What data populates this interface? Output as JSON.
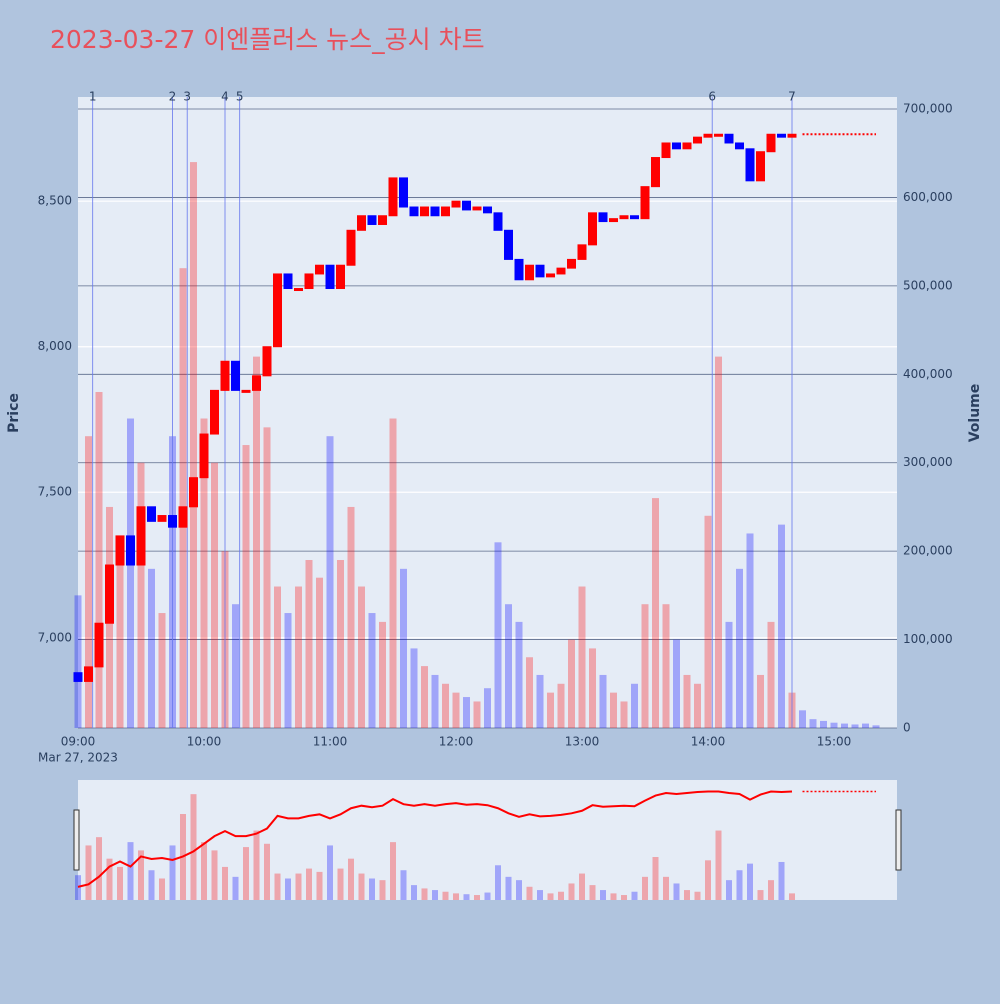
{
  "chart_data": {
    "type": "candlestick",
    "title": "2023-03-27 이엔플러스 뉴스_공시 차트",
    "y_label": "Price",
    "y2_label": "Volume",
    "x_date_label": "Mar 27, 2023",
    "up_color": "#ff0000",
    "down_color": "#0000ff",
    "xlim": [
      "09:00",
      "15:30"
    ],
    "xticks": [
      "09:00",
      "10:00",
      "11:00",
      "12:00",
      "13:00",
      "14:00",
      "15:00"
    ],
    "ylim": [
      6690,
      8858
    ],
    "yticks": [
      {
        "value": 7000,
        "label": "7,000"
      },
      {
        "value": 7500,
        "label": "7,500"
      },
      {
        "value": 8000,
        "label": "8,000"
      },
      {
        "value": 8500,
        "label": "8,500"
      }
    ],
    "y2lim": [
      0,
      713600
    ],
    "y2ticks": [
      0,
      {
        "value": 100000,
        "label": "100,000"
      },
      {
        "value": 200000,
        "label": "200,000"
      },
      {
        "value": 300000,
        "label": "300,000"
      },
      {
        "value": 400000,
        "label": "400,000"
      },
      {
        "value": 500000,
        "label": "500,000"
      },
      {
        "value": 600000,
        "label": "600,000"
      },
      {
        "value": 700000,
        "label": "700,000"
      }
    ],
    "x": [
      "09:00",
      "09:05",
      "09:10",
      "09:15",
      "09:20",
      "09:25",
      "09:30",
      "09:35",
      "09:40",
      "09:45",
      "09:50",
      "09:55",
      "10:00",
      "10:05",
      "10:10",
      "10:15",
      "10:20",
      "10:25",
      "10:30",
      "10:35",
      "10:40",
      "10:45",
      "10:50",
      "10:55",
      "11:00",
      "11:05",
      "11:10",
      "11:15",
      "11:20",
      "11:25",
      "11:30",
      "11:35",
      "11:40",
      "11:45",
      "11:50",
      "11:55",
      "12:00",
      "12:05",
      "12:10",
      "12:15",
      "12:20",
      "12:25",
      "12:30",
      "12:35",
      "12:40",
      "12:45",
      "12:50",
      "12:55",
      "13:00",
      "13:05",
      "13:10",
      "13:15",
      "13:20",
      "13:25",
      "13:30",
      "13:35",
      "13:40",
      "13:45",
      "13:50",
      "13:55",
      "14:00",
      "14:05",
      "14:10",
      "14:15",
      "14:20",
      "14:25",
      "14:30",
      "14:35",
      "14:40"
    ],
    "open": [
      6880,
      6850,
      6900,
      7050,
      7250,
      7350,
      7250,
      7450,
      7400,
      7420,
      7380,
      7450,
      7550,
      7700,
      7850,
      7950,
      7850,
      7850,
      7900,
      8000,
      8250,
      8200,
      8200,
      8250,
      8280,
      8200,
      8280,
      8400,
      8450,
      8420,
      8450,
      8580,
      8480,
      8450,
      8480,
      8450,
      8480,
      8500,
      8470,
      8480,
      8460,
      8400,
      8300,
      8230,
      8280,
      8240,
      8250,
      8270,
      8300,
      8350,
      8460,
      8430,
      8440,
      8450,
      8440,
      8550,
      8650,
      8700,
      8680,
      8700,
      8720,
      8730,
      8730,
      8700,
      8680,
      8570,
      8670,
      8730,
      8720
    ],
    "close": [
      6850,
      6900,
      7050,
      7250,
      7350,
      7250,
      7450,
      7400,
      7420,
      7380,
      7450,
      7550,
      7700,
      7850,
      7950,
      7850,
      7850,
      7900,
      8000,
      8250,
      8200,
      8200,
      8250,
      8280,
      8200,
      8280,
      8400,
      8450,
      8420,
      8450,
      8580,
      8480,
      8450,
      8480,
      8450,
      8480,
      8500,
      8470,
      8480,
      8460,
      8400,
      8300,
      8230,
      8280,
      8240,
      8250,
      8270,
      8300,
      8350,
      8460,
      8430,
      8440,
      8450,
      8440,
      8550,
      8650,
      8700,
      8680,
      8700,
      8720,
      8730,
      8730,
      8700,
      8680,
      8570,
      8670,
      8730,
      8720,
      8730
    ],
    "volume": [
      150000,
      330000,
      380000,
      250000,
      200000,
      350000,
      300000,
      180000,
      130000,
      330000,
      520000,
      640000,
      350000,
      300000,
      200000,
      140000,
      320000,
      420000,
      340000,
      160000,
      130000,
      160000,
      190000,
      170000,
      330000,
      190000,
      250000,
      160000,
      130000,
      120000,
      350000,
      180000,
      90000,
      70000,
      60000,
      50000,
      40000,
      35000,
      30000,
      45000,
      210000,
      140000,
      120000,
      80000,
      60000,
      40000,
      50000,
      100000,
      160000,
      90000,
      60000,
      40000,
      30000,
      50000,
      140000,
      260000,
      140000,
      100000,
      60000,
      50000,
      240000,
      420000,
      120000,
      180000,
      220000,
      60000,
      120000,
      230000,
      40000
    ],
    "after_hours": {
      "x": [
        "14:45",
        "14:50",
        "14:55",
        "15:00",
        "15:05",
        "15:10",
        "15:15",
        "15:20"
      ],
      "values": [
        8730,
        8730,
        8730,
        8730,
        8730,
        8730,
        8730,
        8730
      ],
      "volume": [
        20000,
        10000,
        8000,
        6000,
        5000,
        4000,
        5000,
        3000
      ]
    },
    "events": [
      {
        "time": "09:07",
        "label": "1"
      },
      {
        "time": "09:45",
        "label": "2"
      },
      {
        "time": "09:52",
        "label": "3"
      },
      {
        "time": "10:10",
        "label": "4"
      },
      {
        "time": "10:17",
        "label": "5"
      },
      {
        "time": "14:02",
        "label": "6"
      },
      {
        "time": "14:40",
        "label": "7"
      }
    ]
  }
}
